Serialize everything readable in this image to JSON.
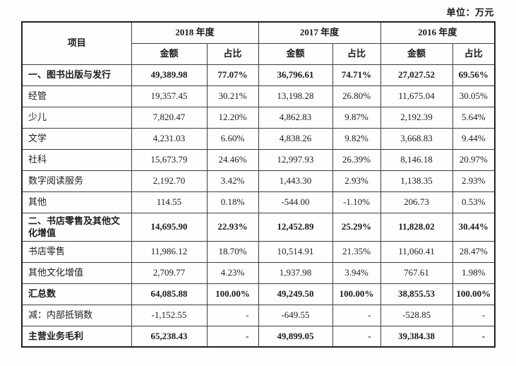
{
  "unit_label": "单位：万元",
  "table": {
    "item_header": "项目",
    "year_headers": [
      "2018 年度",
      "2017 年度",
      "2016 年度"
    ],
    "sub_headers": [
      "金额",
      "占比"
    ],
    "rows": [
      {
        "label": "一、图书出版与发行",
        "bold": true,
        "values": [
          "49,389.98",
          "77.07%",
          "36,796.61",
          "74.71%",
          "27,027.52",
          "69.56%"
        ]
      },
      {
        "label": "经管",
        "bold": false,
        "values": [
          "19,357.45",
          "30.21%",
          "13,198.28",
          "26.80%",
          "11,675.04",
          "30.05%"
        ]
      },
      {
        "label": "少儿",
        "bold": false,
        "values": [
          "7,820.47",
          "12.20%",
          "4,862.83",
          "9.87%",
          "2,192.39",
          "5.64%"
        ]
      },
      {
        "label": "文学",
        "bold": false,
        "values": [
          "4,231.03",
          "6.60%",
          "4,838.26",
          "9.82%",
          "3,668.83",
          "9.44%"
        ]
      },
      {
        "label": "社科",
        "bold": false,
        "values": [
          "15,673.79",
          "24.46%",
          "12,997.93",
          "26.39%",
          "8,146.18",
          "20.97%"
        ]
      },
      {
        "label": "数字阅读服务",
        "bold": false,
        "values": [
          "2,192.70",
          "3.42%",
          "1,443.30",
          "2.93%",
          "1,138.35",
          "2.93%"
        ]
      },
      {
        "label": "其他",
        "bold": false,
        "values": [
          "114.55",
          "0.18%",
          "-544.00",
          "-1.10%",
          "206.73",
          "0.53%"
        ]
      },
      {
        "label": "二、书店零售及其他文化增值",
        "bold": true,
        "values": [
          "14,695.90",
          "22.93%",
          "12,452.89",
          "25.29%",
          "11,828.02",
          "30.44%"
        ]
      },
      {
        "label": "书店零售",
        "bold": false,
        "values": [
          "11,986.12",
          "18.70%",
          "10,514.91",
          "21.35%",
          "11,060.41",
          "28.47%"
        ]
      },
      {
        "label": "其他文化增值",
        "bold": false,
        "values": [
          "2,709.77",
          "4.23%",
          "1,937.98",
          "3.94%",
          "767.61",
          "1.98%"
        ]
      },
      {
        "label": "汇总数",
        "bold": true,
        "values": [
          "64,085.88",
          "100.00%",
          "49,249.50",
          "100.00%",
          "38,855.53",
          "100.00%"
        ]
      },
      {
        "label": "减：内部抵销数",
        "bold": false,
        "values": [
          "-1,152.55",
          "-",
          "-649.55",
          "-",
          "-528.85",
          "-"
        ]
      },
      {
        "label": "主营业务毛利",
        "bold": true,
        "values": [
          "65,238.43",
          "-",
          "49,899.05",
          "-",
          "39,384.38",
          "-"
        ]
      }
    ]
  }
}
